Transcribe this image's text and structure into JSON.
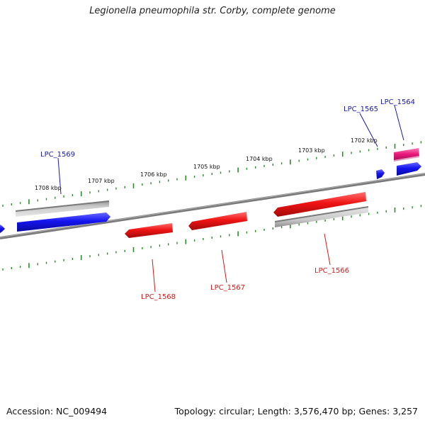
{
  "title": "Legionella pneumophila str. Corby, complete genome",
  "footer": {
    "accession": "Accession: NC_009494",
    "summary": "Topology: circular; Length: 3,576,470 bp; Genes: 3,257"
  },
  "colors": {
    "forward_gene": "#1414f0",
    "reverse_gene": "#f01414",
    "rna_gene": "#e8197c",
    "gray_track": "#b4b4b4",
    "backbone": "#808080",
    "ticks": "#2d8a2d",
    "label_forward": "#1a1aa0",
    "label_reverse": "#c81e1e"
  },
  "kbp_marks": [
    "1702 kbp",
    "1703 kbp",
    "1704 kbp",
    "1705 kbp",
    "1706 kbp",
    "1707 kbp",
    "1708 kbp"
  ],
  "genes": [
    {
      "locus": "LPC_1564",
      "strand": "forward",
      "type": "rna"
    },
    {
      "locus": "LPC_1565",
      "strand": "forward",
      "type": "cds"
    },
    {
      "locus": "LPC_1566",
      "strand": "reverse",
      "type": "cds"
    },
    {
      "locus": "LPC_1567",
      "strand": "reverse",
      "type": "cds"
    },
    {
      "locus": "LPC_1568",
      "strand": "reverse",
      "type": "cds"
    },
    {
      "locus": "LPC_1569",
      "strand": "forward",
      "type": "cds"
    }
  ]
}
